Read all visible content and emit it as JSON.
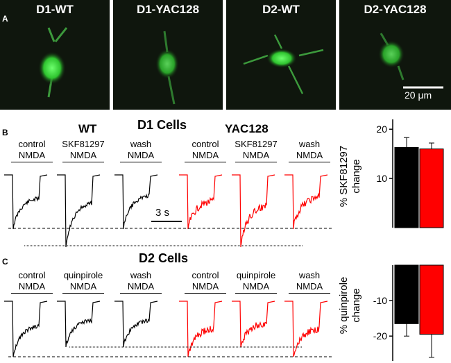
{
  "panel_a": {
    "letter": "A",
    "labels": [
      "D1-WT",
      "D1-YAC128",
      "D2-WT",
      "D2-YAC128"
    ],
    "scale_bar": "20 μm"
  },
  "panel_b": {
    "letter": "B",
    "title": "D1 Cells",
    "group_wt": "WT",
    "group_yac": "YAC128",
    "conditions": [
      {
        "top": "control",
        "bottom": "NMDA"
      },
      {
        "top": "SKF81297",
        "bottom": "NMDA"
      },
      {
        "top": "wash",
        "bottom": "NMDA"
      },
      {
        "top": "control",
        "bottom": "NMDA"
      },
      {
        "top": "SKF81297",
        "bottom": "NMDA"
      },
      {
        "top": "wash",
        "bottom": "NMDA"
      }
    ],
    "time_scale": "3 s"
  },
  "panel_c": {
    "letter": "C",
    "title": "D2 Cells",
    "conditions": [
      {
        "top": "control",
        "bottom": "NMDA"
      },
      {
        "top": "quinpirole",
        "bottom": "NMDA"
      },
      {
        "top": "wash",
        "bottom": "NMDA"
      },
      {
        "top": "control",
        "bottom": "NMDA"
      },
      {
        "top": "quinpirole",
        "bottom": "NMDA"
      },
      {
        "top": "wash",
        "bottom": "NMDA"
      }
    ]
  },
  "colors": {
    "wt": "#000000",
    "yac128": "#ff0000"
  },
  "chart_data": [
    {
      "type": "bar",
      "categories": [
        "WT",
        "YAC128"
      ],
      "values": [
        16.3,
        16.0
      ],
      "errors": [
        2.0,
        1.2
      ],
      "ylabel_line1": "% SKF81297",
      "ylabel_line2": "change",
      "ylim": [
        0,
        22
      ],
      "yticks": [
        10,
        20
      ],
      "ytick_labels": [
        "10",
        "20"
      ]
    },
    {
      "type": "bar",
      "categories": [
        "WT",
        "YAC128"
      ],
      "values": [
        -16.5,
        -19.5
      ],
      "errors": [
        3.5,
        6.5
      ],
      "ylabel_line1": "% quinpirole",
      "ylabel_line2": "change",
      "ylim": [
        -27,
        0
      ],
      "yticks": [
        -10,
        -20
      ],
      "ytick_labels": [
        "-10",
        "-20"
      ]
    }
  ]
}
